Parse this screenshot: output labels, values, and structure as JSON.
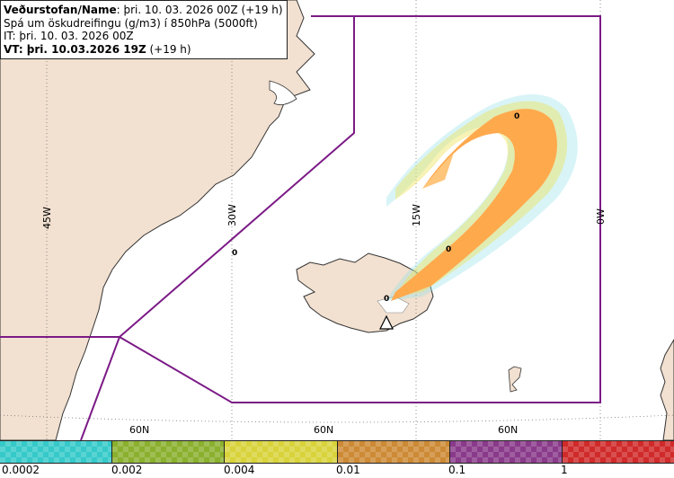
{
  "header": {
    "line1_label": "Veðurstofan/Name",
    "line1_value": ": þri. 10. 03. 2026 00Z (+19 h)",
    "line2": "Spá um öskudreifingu (g/m3) í 850hPa (5000ft)",
    "line3": "IT: þri. 10. 03. 2026 00Z",
    "line4_label": "VT: þri. 10.03.2026 19Z",
    "line4_value": " (+19 h)"
  },
  "map": {
    "meridian_labels": [
      "45W",
      "30W",
      "15W",
      "0W"
    ],
    "parallel_labels": [
      "60N",
      "60N",
      "60N"
    ],
    "plume_markers": [
      "0",
      "0",
      "0",
      "0"
    ],
    "colors": {
      "land": "#f2e0d0",
      "coast": "#333333",
      "boundary": "#7b1a86",
      "plume_core": "#ffa94d",
      "plume_mid": "#ffc57a",
      "plume_yellow": "#ede35c",
      "plume_cyan": "#8ee0e8"
    }
  },
  "legend": {
    "ticks": [
      "0.0002",
      "0.002",
      "0.004",
      "0.01",
      "0.1",
      "1"
    ],
    "colors": [
      "#36c9c9",
      "#8ab02e",
      "#d8d33a",
      "#cd8a35",
      "#8a3a8a",
      "#d02a2a"
    ]
  }
}
